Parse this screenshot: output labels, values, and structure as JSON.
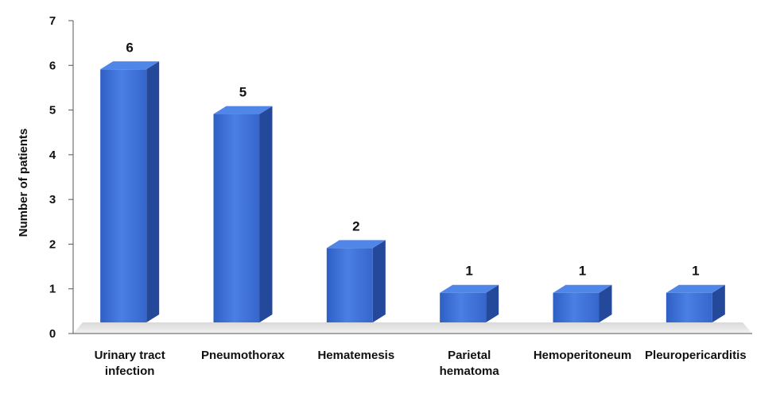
{
  "chart_data": {
    "type": "bar",
    "title": "",
    "xlabel": "",
    "ylabel": "Number of patients",
    "ylim": [
      0,
      7
    ],
    "yticks": [
      0,
      1,
      2,
      3,
      4,
      5,
      6,
      7
    ],
    "grid": false,
    "legend": "none",
    "categories": [
      [
        "Urinary tract",
        "infection"
      ],
      [
        "Pneumothorax"
      ],
      [
        "Hematemesis"
      ],
      [
        "Parietal",
        "hematoma"
      ],
      [
        "Hemoperitoneum"
      ],
      [
        "Pleuropericarditis"
      ]
    ],
    "values": [
      6,
      5,
      2,
      1,
      1,
      1
    ],
    "colors": {
      "bar_front": "#3d6fd6",
      "bar_top": "#4f86e8",
      "bar_side": "#24489a"
    }
  }
}
